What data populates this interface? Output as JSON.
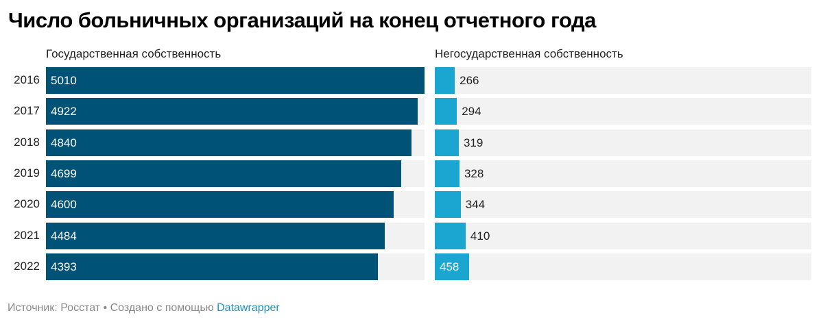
{
  "chart_data": {
    "type": "bar",
    "title": "Число больничных организаций на конец отчетного года",
    "categories": [
      "2016",
      "2017",
      "2018",
      "2019",
      "2020",
      "2021",
      "2022"
    ],
    "series": [
      {
        "name": "Государственная собственность",
        "values": [
          5010,
          4922,
          4840,
          4699,
          4600,
          4484,
          4393
        ],
        "color": "#005377"
      },
      {
        "name": "Негосударственная собственность",
        "values": [
          266,
          294,
          319,
          328,
          344,
          410,
          458
        ],
        "color": "#1ba6d1"
      }
    ],
    "xlim": [
      0,
      5010
    ],
    "background_color": "#f2f2f2"
  },
  "footer": {
    "source": "Источник: Росстат • Создано с помощью ",
    "link": "Datawrapper"
  }
}
